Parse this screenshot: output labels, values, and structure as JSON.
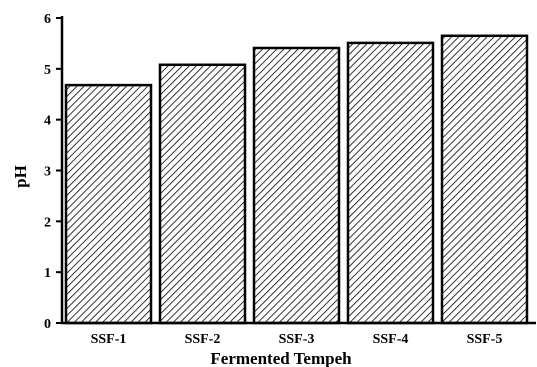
{
  "chart_data": {
    "type": "bar",
    "categories": [
      "SSF-1",
      "SSF-2",
      "SSF-3",
      "SSF-4",
      "SSF-5"
    ],
    "values": [
      4.68,
      5.08,
      5.41,
      5.51,
      5.65
    ],
    "title": "",
    "xlabel": "Fermented Tempeh",
    "ylabel": "pH",
    "ylim": [
      0,
      6
    ],
    "yticks": [
      0,
      1,
      2,
      3,
      4,
      5,
      6
    ],
    "grid": false,
    "legend": "none",
    "bar_fill": "diagonal-hatch",
    "colors": {
      "ink": "#000000",
      "background": "#ffffff"
    }
  }
}
